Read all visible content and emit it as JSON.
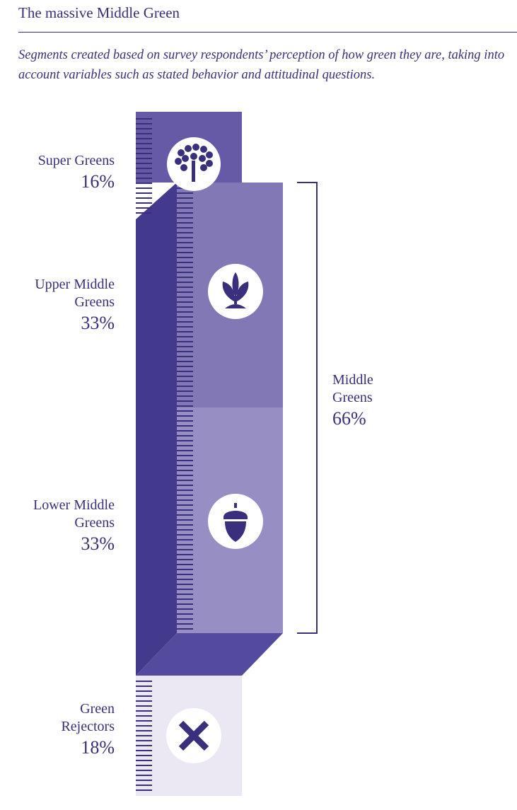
{
  "header": {
    "title": "The massive Middle Green",
    "subtitle": "Segments created based on survey respondents’ perception of how green they are, taking into account variables such as stated behavior and attitudinal questions."
  },
  "colors": {
    "super": "#665aa6",
    "upper": "#8378b6",
    "lower": "#978fc3",
    "dark": "#433a8d",
    "bottom": "#544a9e",
    "rejector": "#ebe8f4",
    "tick": "#3a2f7c",
    "ink": "#3a2f7c"
  },
  "chart_data": {
    "type": "bar",
    "title": "The massive Middle Green",
    "unit": "%",
    "categories": [
      "Super Greens",
      "Upper Middle Greens",
      "Lower Middle Greens",
      "Green Rejectors"
    ],
    "values": [
      16,
      33,
      33,
      18
    ],
    "icons": [
      "tree-icon",
      "sprout-icon",
      "acorn-icon",
      "x-icon"
    ],
    "group": {
      "name": "Middle Greens",
      "value": 66,
      "members": [
        "Upper Middle Greens",
        "Lower Middle Greens"
      ]
    }
  },
  "labels": {
    "super": {
      "name": "Super Greens",
      "pct": "16%"
    },
    "upper": {
      "name1": "Upper Middle",
      "name2": "Greens",
      "pct": "33%"
    },
    "lower": {
      "name1": "Lower Middle",
      "name2": "Greens",
      "pct": "33%"
    },
    "rejectors": {
      "name1": "Green",
      "name2": "Rejectors",
      "pct": "18%"
    },
    "middle": {
      "name1": "Middle",
      "name2": "Greens",
      "pct": "66%"
    }
  }
}
